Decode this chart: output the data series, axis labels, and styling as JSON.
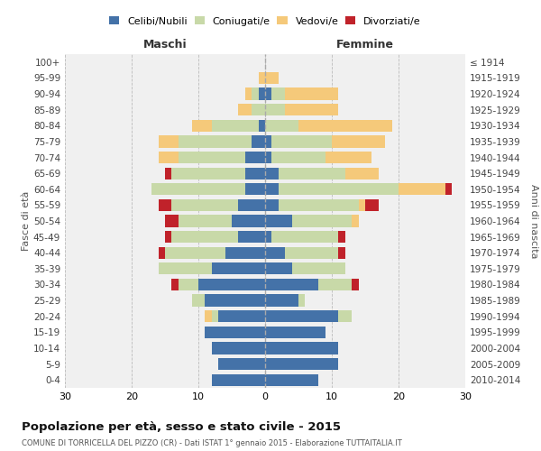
{
  "age_groups": [
    "0-4",
    "5-9",
    "10-14",
    "15-19",
    "20-24",
    "25-29",
    "30-34",
    "35-39",
    "40-44",
    "45-49",
    "50-54",
    "55-59",
    "60-64",
    "65-69",
    "70-74",
    "75-79",
    "80-84",
    "85-89",
    "90-94",
    "95-99",
    "100+"
  ],
  "birth_years": [
    "2010-2014",
    "2005-2009",
    "2000-2004",
    "1995-1999",
    "1990-1994",
    "1985-1989",
    "1980-1984",
    "1975-1979",
    "1970-1974",
    "1965-1969",
    "1960-1964",
    "1955-1959",
    "1950-1954",
    "1945-1949",
    "1940-1944",
    "1935-1939",
    "1930-1934",
    "1925-1929",
    "1920-1924",
    "1915-1919",
    "≤ 1914"
  ],
  "colors": {
    "celibe": "#4472a8",
    "coniugato": "#c8d9a8",
    "vedovo": "#f5c97a",
    "divorziato": "#c0222a"
  },
  "male": {
    "celibe": [
      8,
      7,
      8,
      9,
      7,
      9,
      10,
      8,
      6,
      4,
      5,
      4,
      3,
      3,
      3,
      2,
      1,
      0,
      1,
      0,
      0
    ],
    "coniugato": [
      0,
      0,
      0,
      0,
      1,
      2,
      3,
      8,
      9,
      10,
      8,
      10,
      14,
      11,
      10,
      11,
      7,
      2,
      1,
      0,
      0
    ],
    "vedovo": [
      0,
      0,
      0,
      0,
      1,
      0,
      0,
      0,
      0,
      0,
      0,
      0,
      0,
      0,
      3,
      3,
      3,
      2,
      1,
      1,
      0
    ],
    "divorziato": [
      0,
      0,
      0,
      0,
      0,
      0,
      1,
      0,
      1,
      1,
      2,
      2,
      0,
      1,
      0,
      0,
      0,
      0,
      0,
      0,
      0
    ]
  },
  "female": {
    "nubile": [
      8,
      11,
      11,
      9,
      11,
      5,
      8,
      4,
      3,
      1,
      4,
      2,
      2,
      2,
      1,
      1,
      0,
      0,
      1,
      0,
      0
    ],
    "coniugata": [
      0,
      0,
      0,
      0,
      2,
      1,
      5,
      8,
      8,
      10,
      9,
      12,
      18,
      10,
      8,
      9,
      5,
      3,
      2,
      0,
      0
    ],
    "vedova": [
      0,
      0,
      0,
      0,
      0,
      0,
      0,
      0,
      0,
      0,
      1,
      1,
      7,
      5,
      7,
      8,
      14,
      8,
      8,
      2,
      0
    ],
    "divorziata": [
      0,
      0,
      0,
      0,
      0,
      0,
      1,
      0,
      1,
      1,
      0,
      2,
      1,
      0,
      0,
      0,
      0,
      0,
      0,
      0,
      0
    ]
  },
  "xlim": 30,
  "title": "Popolazione per età, sesso e stato civile - 2015",
  "subtitle": "COMUNE DI TORRICELLA DEL PIZZO (CR) - Dati ISTAT 1° gennaio 2015 - Elaborazione TUTTAITALIA.IT",
  "ylabel_left": "Fasce di età",
  "ylabel_right": "Anni di nascita",
  "xlabel_left": "Maschi",
  "xlabel_right": "Femmine",
  "legend_labels": [
    "Celibi/Nubili",
    "Coniugati/e",
    "Vedovi/e",
    "Divorziati/e"
  ],
  "bg_color": "#f0f0f0"
}
